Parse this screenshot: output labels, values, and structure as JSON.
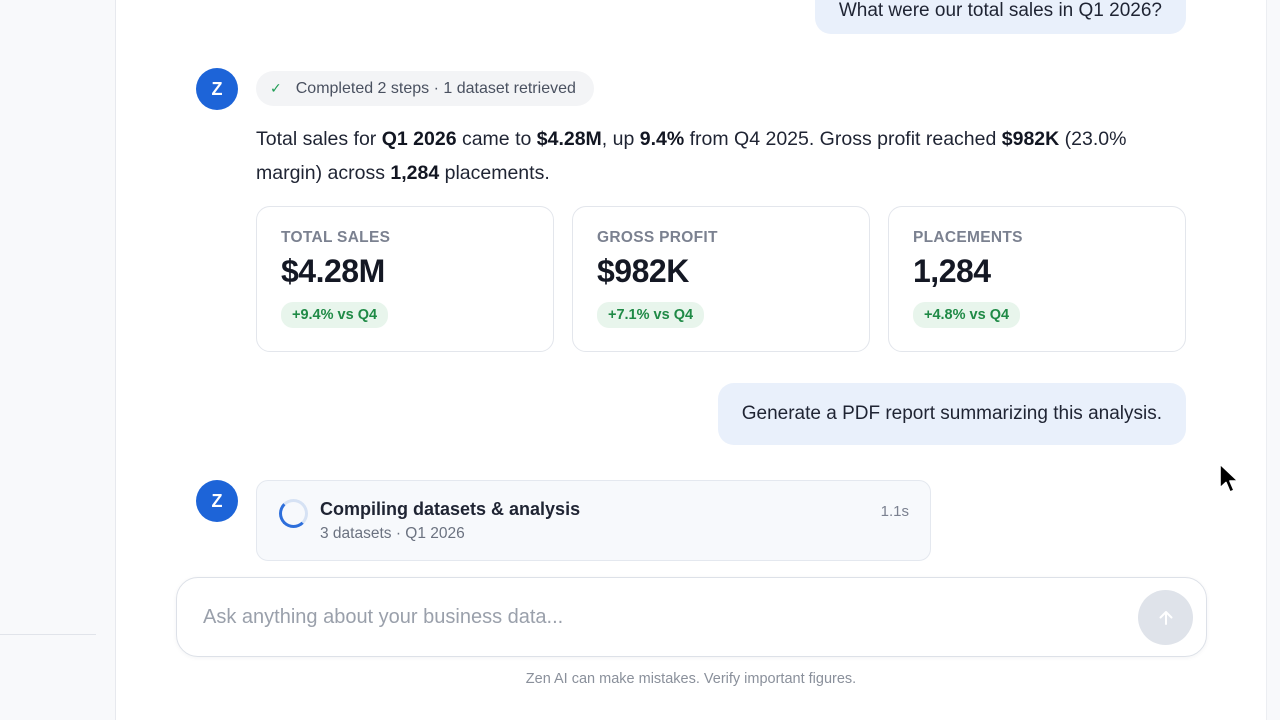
{
  "conversation": {
    "user_message_1": "What were our total sales in Q1 2026?",
    "assistant_avatar_letter": "Z",
    "steps_summary": "Completed 2 steps · 1 dataset retrieved",
    "answer": {
      "t1": "Total sales for ",
      "b1": "Q1 2026",
      "t2": " came to ",
      "b2": "$4.28M",
      "t3": ", up ",
      "b3": "9.4%",
      "t4": " from Q4 2025. Gross profit reached ",
      "b4": "$982K",
      "t5": " (23.0% margin) across ",
      "b5": "1,284",
      "t6": " placements."
    },
    "metrics": [
      {
        "label": "TOTAL SALES",
        "value": "$4.28M",
        "change": "+9.4% vs Q4"
      },
      {
        "label": "GROSS PROFIT",
        "value": "$982K",
        "change": "+7.1% vs Q4"
      },
      {
        "label": "PLACEMENTS",
        "value": "1,284",
        "change": "+4.8% vs Q4"
      }
    ],
    "user_message_2": "Generate a PDF report summarizing this analysis.",
    "progress": {
      "title": "Compiling datasets & analysis",
      "subtitle": "3 datasets · Q1 2026",
      "elapsed": "1.1s"
    }
  },
  "composer": {
    "placeholder": "Ask anything about your business data...",
    "send_icon": "arrow-up-icon"
  },
  "footer": {
    "disclaimer": "Zen AI can make mistakes. Verify important figures."
  },
  "colors": {
    "accent": "#1d64d8",
    "user_bubble": "#e9f0fb",
    "positive": "#1f8a46"
  }
}
